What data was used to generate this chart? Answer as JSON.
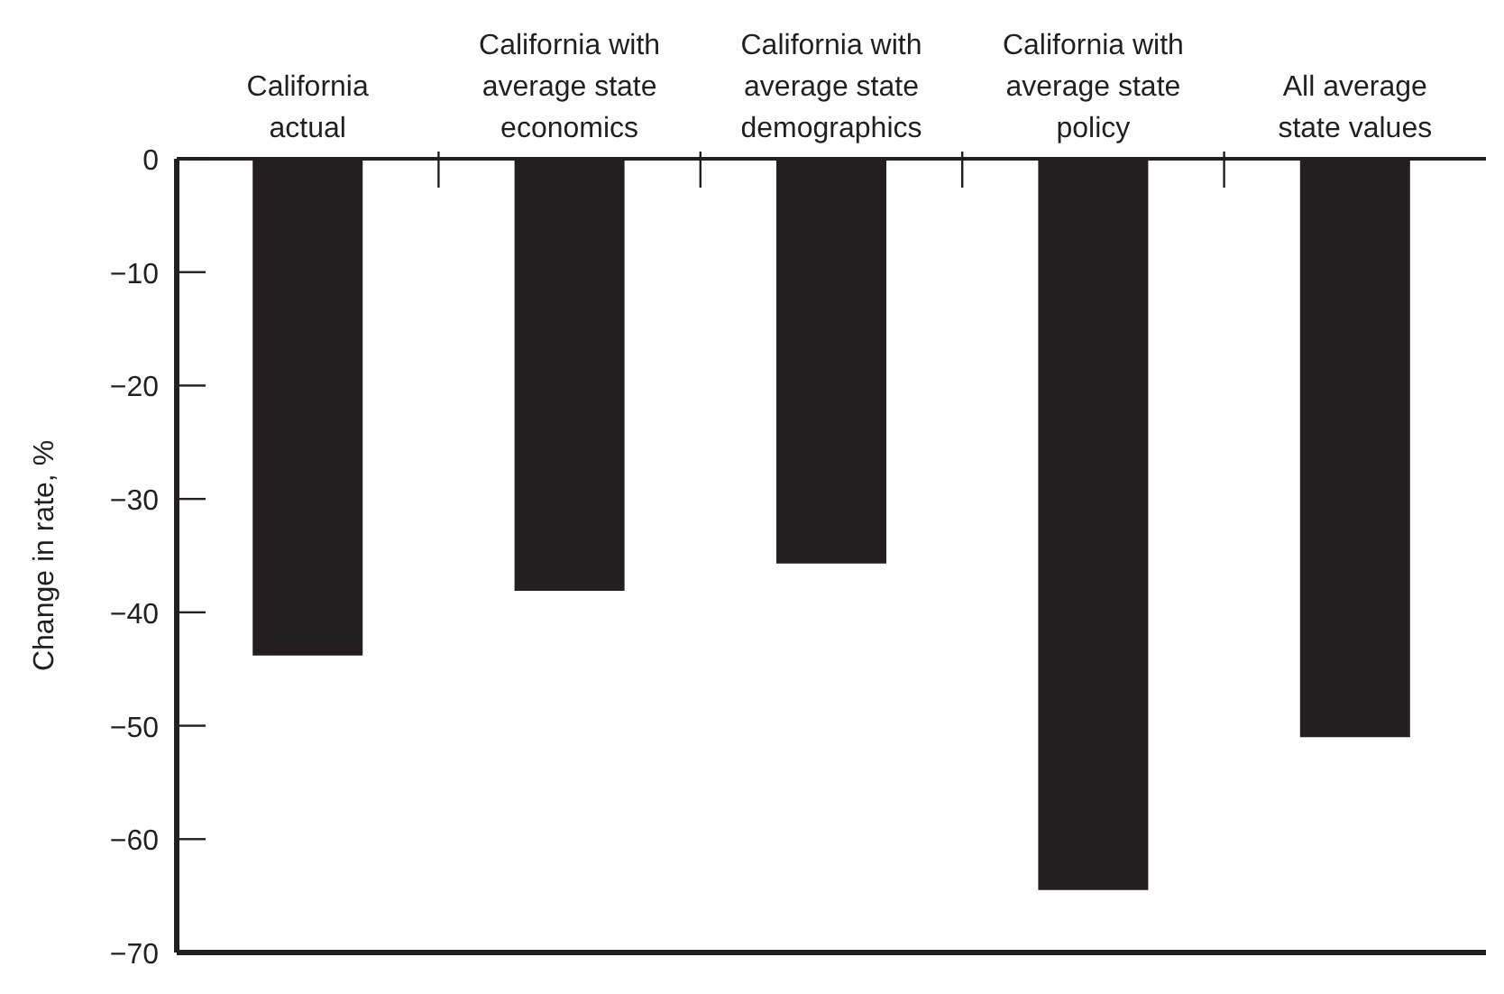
{
  "chart_data": {
    "type": "bar",
    "ylabel": "Change in rate, %",
    "categories": [
      "California actual",
      "California with average state economics",
      "California with average state demographics",
      "California with average state policy",
      "All average state values"
    ],
    "values": [
      -43.8,
      -38.1,
      -35.7,
      -64.5,
      -51.0
    ],
    "color": "#231f20",
    "ylim": [
      -70,
      0
    ],
    "yticks": [
      {
        "value": 0,
        "label": "0"
      },
      {
        "value": -10,
        "label": "−10"
      },
      {
        "value": -20,
        "label": "−20"
      },
      {
        "value": -30,
        "label": "−30"
      },
      {
        "value": -40,
        "label": "−40"
      },
      {
        "value": -50,
        "label": "−50"
      },
      {
        "value": -60,
        "label": "−60"
      },
      {
        "value": -70,
        "label": "−70"
      }
    ],
    "grid": false,
    "legend": false
  }
}
